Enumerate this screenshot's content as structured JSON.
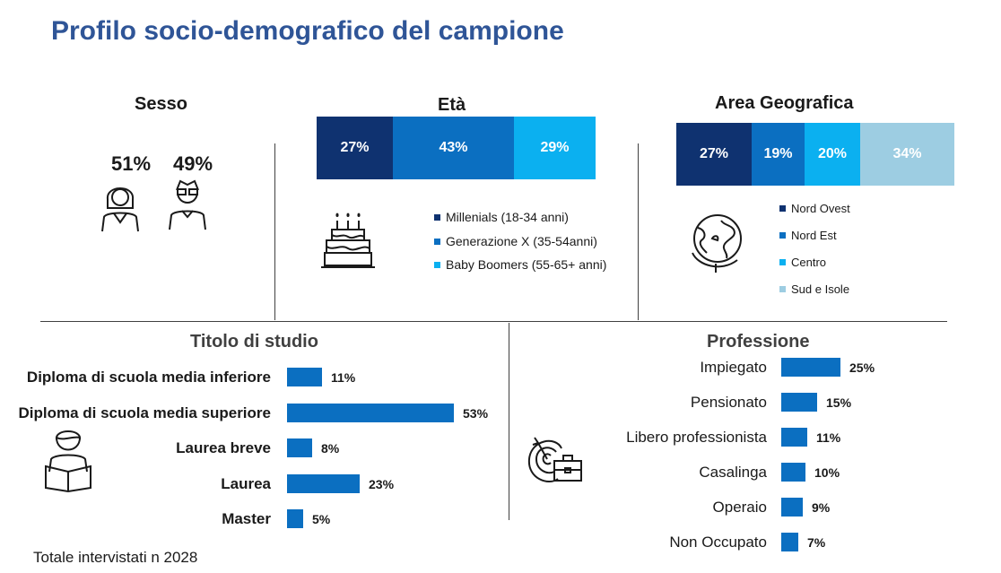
{
  "title": "Profilo socio-demografico del campione",
  "footer": "Totale intervistati n 2028",
  "icons": [
    "woman-icon",
    "man-icon",
    "birthday-cake-icon",
    "globe-icon",
    "student-reading-icon",
    "target-briefcase-icon"
  ],
  "colors": {
    "title": "#2f5597",
    "bar": "#0b6fc1",
    "millenials": "#0f3270",
    "generazione_x": "#0b6fc1",
    "baby_boomers": "#0bb0f0",
    "nord_ovest": "#0f3270",
    "nord_est": "#0b6fc1",
    "centro": "#0bb0f0",
    "sud_isole": "#9dcde2"
  },
  "sesso": {
    "title": "Sesso",
    "female_pct": "51%",
    "male_pct": "49%"
  },
  "eta": {
    "title": "Età",
    "segments": [
      {
        "label": "27%",
        "value": 27,
        "color": "#0f3270"
      },
      {
        "label": "43%",
        "value": 43,
        "color": "#0b6fc1"
      },
      {
        "label": "29%",
        "value": 29,
        "color": "#0bb0f0"
      }
    ],
    "legend": [
      {
        "label": "Millenials (18-34 anni)",
        "color": "#0f3270"
      },
      {
        "label": "Generazione X (35-54anni)",
        "color": "#0b6fc1"
      },
      {
        "label": "Baby Boomers (55-65+ anni)",
        "color": "#0bb0f0"
      }
    ]
  },
  "area": {
    "title": "Area Geografica",
    "segments": [
      {
        "label": "27%",
        "value": 27,
        "color": "#0f3270"
      },
      {
        "label": "19%",
        "value": 19,
        "color": "#0b6fc1"
      },
      {
        "label": "20%",
        "value": 20,
        "color": "#0bb0f0"
      },
      {
        "label": "34%",
        "value": 34,
        "color": "#9dcde2"
      }
    ],
    "legend": [
      {
        "label": "Nord Ovest",
        "color": "#0f3270"
      },
      {
        "label": "Nord Est",
        "color": "#0b6fc1"
      },
      {
        "label": "Centro",
        "color": "#0bb0f0"
      },
      {
        "label": "Sud e Isole",
        "color": "#9dcde2"
      }
    ]
  },
  "chart_data": [
    {
      "type": "bar",
      "orientation": "stacked-horizontal",
      "title": "Sesso",
      "categories": [
        "Donne",
        "Uomini"
      ],
      "values": [
        51,
        49
      ],
      "unit": "%"
    },
    {
      "type": "bar",
      "orientation": "stacked-horizontal",
      "title": "Età",
      "categories": [
        "Millenials (18-34 anni)",
        "Generazione X (35-54anni)",
        "Baby Boomers (55-65+ anni)"
      ],
      "values": [
        27,
        43,
        29
      ],
      "unit": "%"
    },
    {
      "type": "bar",
      "orientation": "stacked-horizontal",
      "title": "Area Geografica",
      "categories": [
        "Nord Ovest",
        "Nord Est",
        "Centro",
        "Sud e Isole"
      ],
      "values": [
        27,
        19,
        20,
        34
      ],
      "unit": "%"
    },
    {
      "type": "bar",
      "orientation": "horizontal",
      "title": "Titolo di studio",
      "categories": [
        "Diploma di scuola media inferiore",
        "Diploma di scuola media superiore",
        "Laurea breve",
        "Laurea",
        "Master"
      ],
      "values": [
        11,
        53,
        8,
        23,
        5
      ],
      "labels": [
        "11%",
        "53%",
        "8%",
        "23%",
        "5%"
      ],
      "unit": "%"
    },
    {
      "type": "bar",
      "orientation": "horizontal",
      "title": "Professione",
      "categories": [
        "Impiegato",
        "Pensionato",
        "Libero professionista",
        "Casalinga",
        "Operaio",
        "Non Occupato"
      ],
      "values": [
        25,
        15,
        11,
        10,
        9,
        7
      ],
      "labels": [
        "25%",
        "15%",
        "11%",
        "10%",
        "9%",
        "7%"
      ],
      "unit": "%"
    }
  ]
}
